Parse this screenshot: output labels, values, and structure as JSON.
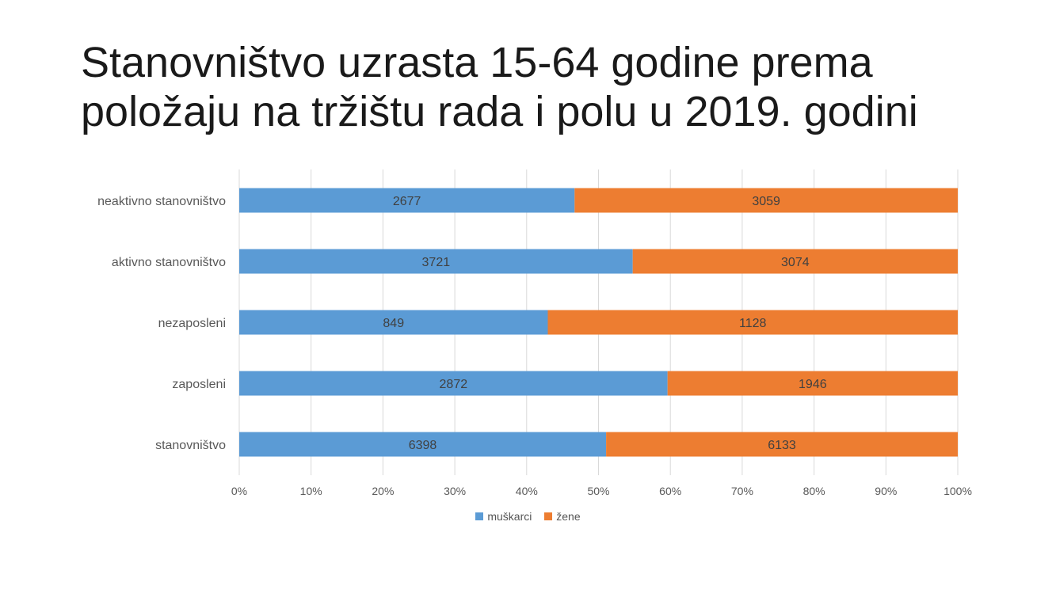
{
  "title": "Stanovništvo uzrasta 15-64 godine prema položaju na tržištu rada i polu u 2019. godini",
  "colors": {
    "series_1": "#5B9BD5",
    "series_2": "#ED7D31",
    "grid": "#d9d9d9",
    "text": "#595959"
  },
  "chart_data": {
    "type": "bar",
    "orientation": "horizontal",
    "stacking": "percent",
    "categories": [
      "neaktivno stanovništvo",
      "aktivno stanovništvo",
      "nezaposleni",
      "zaposleni",
      "stanovništvo"
    ],
    "series": [
      {
        "name": "muškarci",
        "values": [
          2677,
          3721,
          849,
          2872,
          6398
        ]
      },
      {
        "name": "žene",
        "values": [
          3059,
          3074,
          1128,
          1946,
          6133
        ]
      }
    ],
    "x_ticks": [
      "0%",
      "10%",
      "20%",
      "30%",
      "40%",
      "50%",
      "60%",
      "70%",
      "80%",
      "90%",
      "100%"
    ],
    "xlim": [
      0,
      100
    ],
    "grid": true,
    "legend_position": "bottom",
    "data_labels": true
  }
}
